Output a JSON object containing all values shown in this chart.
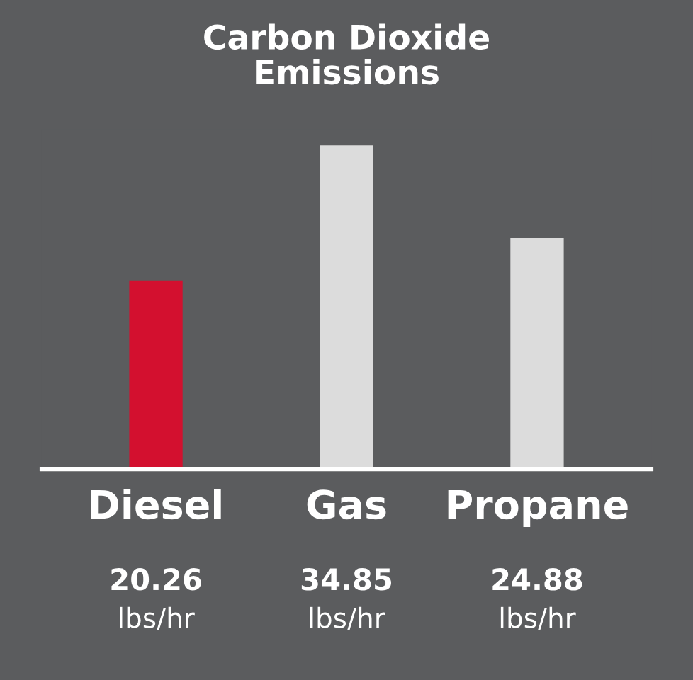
{
  "chart_data": {
    "type": "bar",
    "title": "Carbon Dioxide\nEmissions",
    "categories": [
      "Diesel",
      "Gas",
      "Propane"
    ],
    "values": [
      20.26,
      34.85,
      24.88
    ],
    "colors": [
      "#d3102f",
      "#dcdcdc",
      "#dcdcdc"
    ],
    "value_labels": [
      "20.26\nlbs/hr",
      "34.85\nlbs/hr",
      "24.88\nlbs/hr"
    ],
    "grid": false,
    "legend": false
  }
}
